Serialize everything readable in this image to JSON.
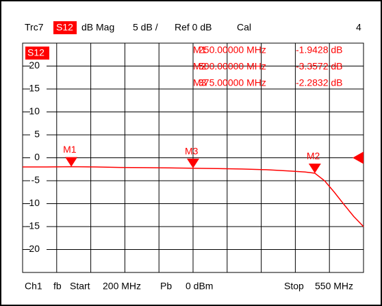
{
  "chart_data": {
    "type": "line",
    "header": [
      "Trc7",
      "S12",
      "dB Mag",
      "5 dB /",
      "Ref 0 dB",
      "Cal",
      "4"
    ],
    "trace_label": "S12",
    "footer": [
      "Ch1",
      "fb",
      "Start",
      "200 MHz",
      "Pb",
      "0 dBm",
      "Stop",
      "550 MHz"
    ],
    "xlim": [
      200,
      550
    ],
    "ylim": [
      -25,
      25
    ],
    "yticks": [
      20,
      15,
      10,
      5,
      0,
      -5,
      -10,
      -15,
      -20
    ],
    "ref": {
      "value": 0,
      "label": "Ref 0 dB"
    },
    "series": [
      {
        "name": "S12",
        "color": "#ff0000",
        "x": [
          200,
          225,
          250,
          275,
          300,
          325,
          350,
          375,
          400,
          425,
          450,
          475,
          490,
          500,
          510,
          520,
          530,
          540,
          550
        ],
        "values": [
          -2.0,
          -2.0,
          -1.94,
          -2.0,
          -2.1,
          -2.15,
          -2.2,
          -2.28,
          -2.35,
          -2.45,
          -2.6,
          -2.9,
          -3.1,
          -3.36,
          -5.0,
          -7.5,
          -10.2,
          -12.8,
          -15.0
        ]
      }
    ],
    "markers": [
      {
        "name": "M1",
        "x": 250,
        "x_label": "250.00000 MHz",
        "value": -1.9428,
        "value_label": "-1.9428 dB"
      },
      {
        "name": "M2",
        "x": 500,
        "x_label": "500.00000 MHz",
        "value": -3.3572,
        "value_label": "-3.3572 dB"
      },
      {
        "name": "M3",
        "x": 375,
        "x_label": "375.00000 MHz",
        "value": -2.2832,
        "value_label": "-2.2832 dB"
      }
    ]
  }
}
